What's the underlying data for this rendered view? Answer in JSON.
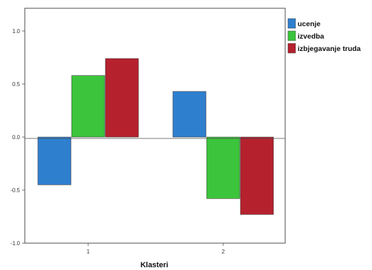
{
  "colors": {
    "background": "#ffffff",
    "frame": "#4a4a4a"
  },
  "chart_data": {
    "type": "bar",
    "xlabel": "Klasteri",
    "ylabel": "",
    "categories": [
      "1",
      "2"
    ],
    "ylim": [
      -1.0,
      1.0
    ],
    "yticks": [
      1.0,
      0.5,
      0.0,
      -0.5,
      -1.0
    ],
    "ytick_labels": [
      "1.0",
      "0.5",
      "0.0",
      "-0.5",
      "-1.0"
    ],
    "grid": false,
    "legend_position": "top-right",
    "series": [
      {
        "name": "ucenje",
        "color": "#2f7fcf",
        "values": [
          -0.45,
          0.43
        ]
      },
      {
        "name": "izvedba",
        "color": "#3cc43c",
        "values": [
          0.58,
          -0.58
        ]
      },
      {
        "name": "izbjegavanje truda",
        "color": "#b5222e",
        "values": [
          0.74,
          -0.73
        ]
      }
    ]
  }
}
